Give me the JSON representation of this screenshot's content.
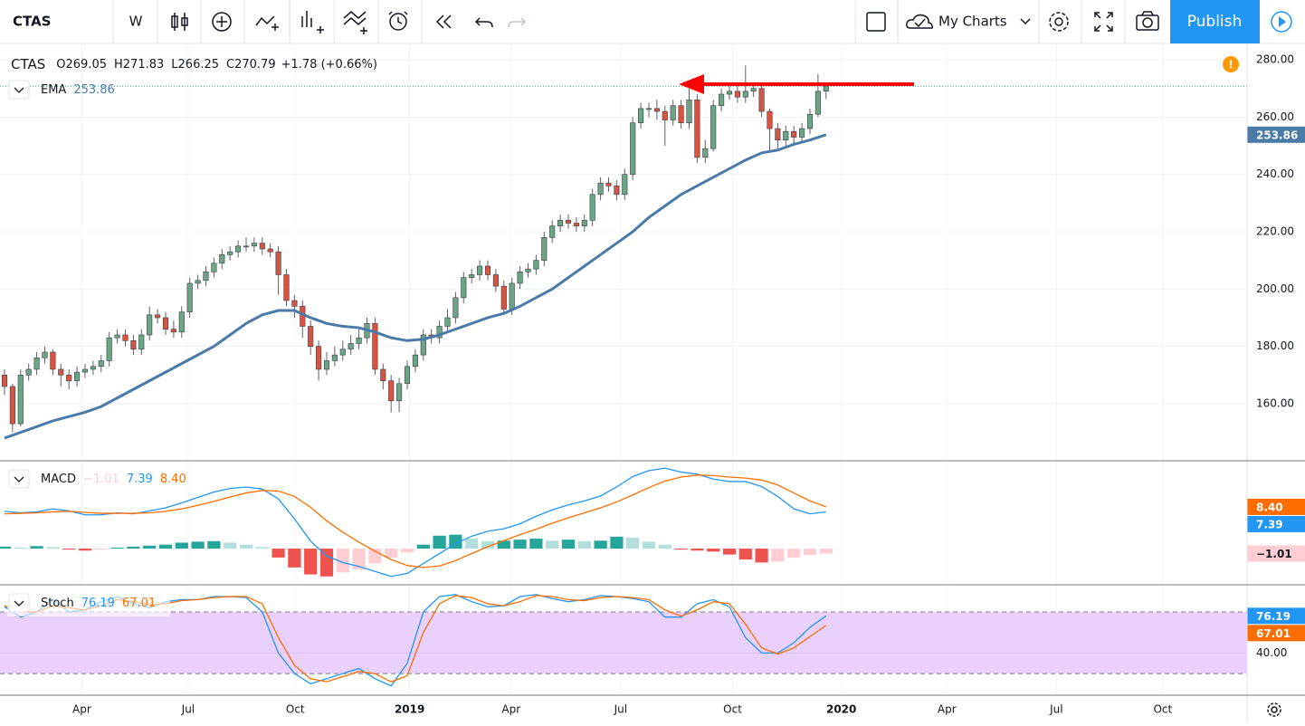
{
  "toolbar": {
    "symbol": "CTAS",
    "interval": "W",
    "my_charts": "My Charts",
    "publish": "Publish"
  },
  "chart_data": [
    {
      "type": "candlestick",
      "title": "CTAS",
      "legend": [
        {
          "key": "O",
          "value": "269.05"
        },
        {
          "key": "H",
          "value": "271.83"
        },
        {
          "key": "L",
          "value": "266.25"
        },
        {
          "key": "C",
          "value": "270.79"
        }
      ],
      "change": "+1.78 (+0.66%)",
      "up_color": "#6ba583",
      "down_color": "#d75442",
      "xlim": [
        -0.56,
        154.27
      ],
      "xticks": [
        {
          "value": 9.6,
          "label": "Apr"
        },
        {
          "value": 22.8,
          "label": "Jul"
        },
        {
          "value": 36.1,
          "label": "Oct"
        },
        {
          "value": 50.3,
          "label": "2019"
        },
        {
          "value": 62.9,
          "label": "Apr"
        },
        {
          "value": 76.5,
          "label": "Jul"
        },
        {
          "value": 90.4,
          "label": "Oct"
        },
        {
          "value": 103.9,
          "label": "2020"
        },
        {
          "value": 117,
          "label": "Apr"
        },
        {
          "value": 130.6,
          "label": "Jul"
        },
        {
          "value": 143.8,
          "label": "Oct"
        }
      ],
      "ylim": [
        140.4,
        285.7
      ],
      "yticks": [
        {
          "value": 160,
          "label": "160.00"
        },
        {
          "value": 180,
          "label": "180.00"
        },
        {
          "value": 200,
          "label": "200.00"
        },
        {
          "value": 220,
          "label": "220.00"
        },
        {
          "value": 240,
          "label": "240.00"
        },
        {
          "value": 260,
          "label": "260.00"
        },
        {
          "value": 280,
          "label": "280.00"
        }
      ],
      "grid": true,
      "open": [
        170,
        166,
        153,
        170,
        172,
        176,
        178,
        172,
        170,
        168,
        171,
        172,
        173,
        175,
        183,
        184,
        182,
        179,
        184,
        191,
        190,
        186,
        185,
        192,
        202,
        203,
        206,
        209,
        212,
        213,
        215,
        215,
        216,
        214,
        213,
        205,
        196,
        194,
        187,
        180,
        172,
        175,
        177,
        179,
        181,
        183,
        188,
        172,
        168,
        161,
        167,
        173,
        177,
        184,
        183,
        187,
        190,
        197,
        204,
        205,
        208,
        205,
        201,
        193,
        202,
        206,
        207,
        210,
        218,
        222,
        224,
        223,
        222,
        224,
        233,
        237,
        236,
        233,
        240,
        258,
        263,
        263,
        262,
        259,
        264,
        258,
        266,
        246,
        249,
        264,
        268,
        269,
        267,
        269,
        270,
        262,
        256,
        252,
        255,
        253,
        256,
        261,
        269.05
      ],
      "high": [
        172,
        167,
        172,
        174,
        178,
        180,
        179,
        174,
        172,
        173,
        174,
        175,
        177,
        185,
        186,
        186,
        184,
        186,
        194,
        193,
        192,
        189,
        194,
        204,
        205,
        208,
        211,
        214,
        215,
        217,
        218,
        218,
        218,
        216,
        215,
        207,
        198,
        196,
        189,
        182,
        178,
        180,
        182,
        184,
        186,
        190,
        190,
        174,
        170,
        169,
        175,
        179,
        186,
        186,
        189,
        193,
        199,
        206,
        207,
        210,
        210,
        207,
        203,
        204,
        208,
        209,
        212,
        220,
        224,
        226,
        226,
        225,
        226,
        235,
        239,
        239,
        238,
        242,
        260,
        265,
        265,
        266,
        264,
        266,
        266,
        270,
        268,
        252,
        266,
        270,
        271,
        271,
        278,
        272,
        272,
        263,
        258,
        257,
        257,
        258,
        263,
        275,
        271.83
      ],
      "low": [
        163,
        150,
        152,
        168,
        170,
        174,
        170,
        166,
        165,
        166,
        169,
        170,
        171,
        173,
        181,
        180,
        177,
        177,
        182,
        188,
        184,
        183,
        183,
        190,
        200,
        201,
        204,
        207,
        210,
        211,
        213,
        213,
        212,
        211,
        198,
        194,
        190,
        183,
        177,
        168,
        170,
        173,
        175,
        177,
        179,
        181,
        170,
        165,
        157,
        157,
        165,
        171,
        175,
        181,
        181,
        185,
        188,
        195,
        202,
        203,
        203,
        199,
        191,
        191,
        200,
        204,
        205,
        208,
        216,
        220,
        221,
        220,
        220,
        222,
        231,
        234,
        231,
        231,
        238,
        256,
        260,
        259,
        250,
        257,
        256,
        256,
        244,
        244,
        248,
        262,
        266,
        265,
        265,
        267,
        260,
        248,
        249,
        250,
        250,
        251,
        254,
        260,
        266.25
      ],
      "close": [
        166,
        153,
        170,
        172,
        176,
        178,
        172,
        170,
        168,
        171,
        172,
        173,
        175,
        183,
        184,
        182,
        179,
        184,
        191,
        190,
        186,
        185,
        192,
        202,
        203,
        206,
        209,
        212,
        213,
        215,
        215,
        216,
        214,
        213,
        205,
        196,
        194,
        187,
        180,
        172,
        175,
        177,
        179,
        181,
        183,
        188,
        172,
        168,
        161,
        167,
        173,
        177,
        184,
        183,
        187,
        190,
        197,
        204,
        205,
        208,
        205,
        201,
        193,
        202,
        206,
        207,
        210,
        218,
        222,
        224,
        223,
        222,
        224,
        233,
        237,
        236,
        233,
        240,
        258,
        263,
        263,
        262,
        259,
        264,
        258,
        266,
        246,
        249,
        264,
        268,
        269,
        267,
        269,
        270,
        262,
        256,
        252,
        255,
        253,
        256,
        261,
        269.01,
        270.79
      ],
      "series": [
        {
          "name": "EMA",
          "value_label": "253.86",
          "color": "#4a7aa8",
          "x": [
            0,
            2,
            4,
            6,
            8,
            10,
            12,
            14,
            16,
            18,
            20,
            22,
            24,
            26,
            28,
            30,
            32,
            34,
            36,
            38,
            40,
            42,
            44,
            46,
            48,
            50,
            52,
            54,
            56,
            58,
            60,
            62,
            64,
            66,
            68,
            70,
            72,
            74,
            76,
            78,
            80,
            82,
            84,
            86,
            88,
            90,
            92,
            94,
            96,
            98,
            100,
            102
          ],
          "values": [
            148,
            150,
            152,
            154,
            155.5,
            157,
            159,
            162,
            165,
            168,
            171,
            174,
            177,
            180,
            184,
            188,
            191,
            192.5,
            192.5,
            190,
            188,
            187,
            186.5,
            185,
            183,
            182,
            182.5,
            184,
            186,
            188,
            190,
            191.5,
            194,
            197,
            200,
            204,
            208,
            212,
            216,
            220,
            225,
            229,
            233,
            236,
            239,
            242,
            245,
            247.5,
            248.5,
            250.5,
            252,
            253.86
          ]
        }
      ]
    },
    {
      "type": "macd",
      "title": "MACD",
      "ylim": [
        -7.1,
        17.5
      ],
      "x": [
        0,
        2,
        4,
        6,
        8,
        10,
        12,
        14,
        16,
        18,
        20,
        22,
        24,
        26,
        28,
        30,
        32,
        34,
        36,
        38,
        40,
        42,
        44,
        46,
        48,
        50,
        52,
        54,
        56,
        58,
        60,
        62,
        64,
        66,
        68,
        70,
        72,
        74,
        76,
        78,
        80,
        82,
        84,
        86,
        88,
        90,
        92,
        94,
        96,
        98,
        100,
        102
      ],
      "histogram": {
        "value_label": "−1.01",
        "colors": [
          "#26a69a",
          "#b2dfdb",
          "#ef5350",
          "#ffcdd2"
        ],
        "values": [
          0.4,
          0.2,
          0.5,
          0.3,
          -0.2,
          -0.4,
          -0.2,
          0.2,
          0.4,
          0.6,
          0.8,
          1.2,
          1.4,
          1.5,
          1.2,
          0.8,
          0.3,
          -1.8,
          -3.8,
          -5.2,
          -5.6,
          -4.8,
          -4.2,
          -3.0,
          -1.8,
          -0.8,
          0.8,
          2.6,
          2.8,
          2.0,
          1.5,
          1.6,
          1.8,
          2.0,
          1.6,
          1.8,
          1.5,
          1.6,
          2.4,
          2.2,
          1.4,
          0.8,
          -0.2,
          -0.4,
          -0.6,
          -1.2,
          -2.2,
          -2.8,
          -2.6,
          -1.8,
          -1.3,
          -1.01
        ]
      },
      "series": [
        {
          "value_label": "7.39",
          "color": "#2196f3",
          "values": [
            7.5,
            7.2,
            7.4,
            8,
            7.6,
            6.8,
            6.8,
            7.2,
            7.0,
            7.6,
            8.2,
            9.2,
            10.3,
            11.4,
            12.1,
            12.4,
            12.0,
            10.0,
            6.0,
            1.5,
            -1.5,
            -2.8,
            -3.6,
            -4.6,
            -5.6,
            -5.0,
            -3.0,
            -1.0,
            1.0,
            2.5,
            3.5,
            4.0,
            5.0,
            6.5,
            7.8,
            8.8,
            9.6,
            10.6,
            12.4,
            14.5,
            15.7,
            16.2,
            15.4,
            15.0,
            14.0,
            13.5,
            13.5,
            12.5,
            10.5,
            8.0,
            7.0,
            7.39
          ]
        },
        {
          "value_label": "8.40",
          "color": "#ff6d00",
          "values": [
            7.0,
            7.1,
            7.2,
            7.4,
            7.5,
            7.3,
            7.1,
            7.1,
            7.1,
            7.2,
            7.5,
            8.0,
            8.7,
            9.5,
            10.4,
            11.2,
            11.7,
            11.6,
            10.5,
            8.3,
            5.6,
            3.3,
            1.3,
            -0.5,
            -2.2,
            -3.4,
            -3.8,
            -3.5,
            -2.4,
            -1.0,
            0.4,
            1.6,
            2.8,
            3.9,
            5.1,
            6.2,
            7.2,
            8.2,
            9.4,
            10.8,
            12.3,
            13.6,
            14.4,
            14.8,
            14.7,
            14.4,
            14.2,
            13.8,
            12.8,
            11.2,
            9.6,
            8.4
          ]
        }
      ]
    },
    {
      "type": "stoch",
      "title": "Stoch",
      "ylim": [
        -1.1,
        104.7
      ],
      "yticks": [
        {
          "value": 40,
          "label": "40.00"
        }
      ],
      "bands": [
        20,
        80
      ],
      "band_color": "#e6c8fb",
      "x": [
        0,
        2,
        4,
        6,
        8,
        10,
        12,
        14,
        16,
        18,
        20,
        22,
        24,
        26,
        28,
        30,
        32,
        34,
        36,
        38,
        40,
        42,
        44,
        46,
        48,
        50,
        52,
        54,
        56,
        58,
        60,
        62,
        64,
        66,
        68,
        70,
        72,
        74,
        76,
        78,
        80,
        82,
        84,
        86,
        88,
        90,
        92,
        94,
        96,
        98,
        100,
        102
      ],
      "series": [
        {
          "value_label": "76.19",
          "color": "#2196f3",
          "values": [
            85,
            75,
            80,
            92,
            80,
            82,
            90,
            95,
            88,
            84,
            90,
            92,
            92,
            95,
            95,
            94,
            80,
            40,
            20,
            10,
            15,
            20,
            25,
            15,
            8,
            30,
            80,
            95,
            97,
            90,
            85,
            86,
            95,
            97,
            93,
            90,
            92,
            96,
            95,
            93,
            90,
            75,
            75,
            88,
            92,
            85,
            55,
            40,
            40,
            50,
            65,
            76.19
          ]
        },
        {
          "value_label": "67.01",
          "color": "#ff6d00",
          "values": [
            86,
            80,
            80,
            86,
            84,
            82,
            86,
            92,
            90,
            87,
            88,
            91,
            92,
            94,
            95,
            95,
            88,
            55,
            28,
            15,
            12,
            17,
            22,
            20,
            12,
            18,
            60,
            88,
            96,
            94,
            88,
            86,
            90,
            96,
            95,
            92,
            91,
            94,
            95,
            94,
            92,
            82,
            76,
            82,
            90,
            88,
            68,
            45,
            39,
            45,
            56,
            67.01
          ]
        }
      ]
    }
  ]
}
